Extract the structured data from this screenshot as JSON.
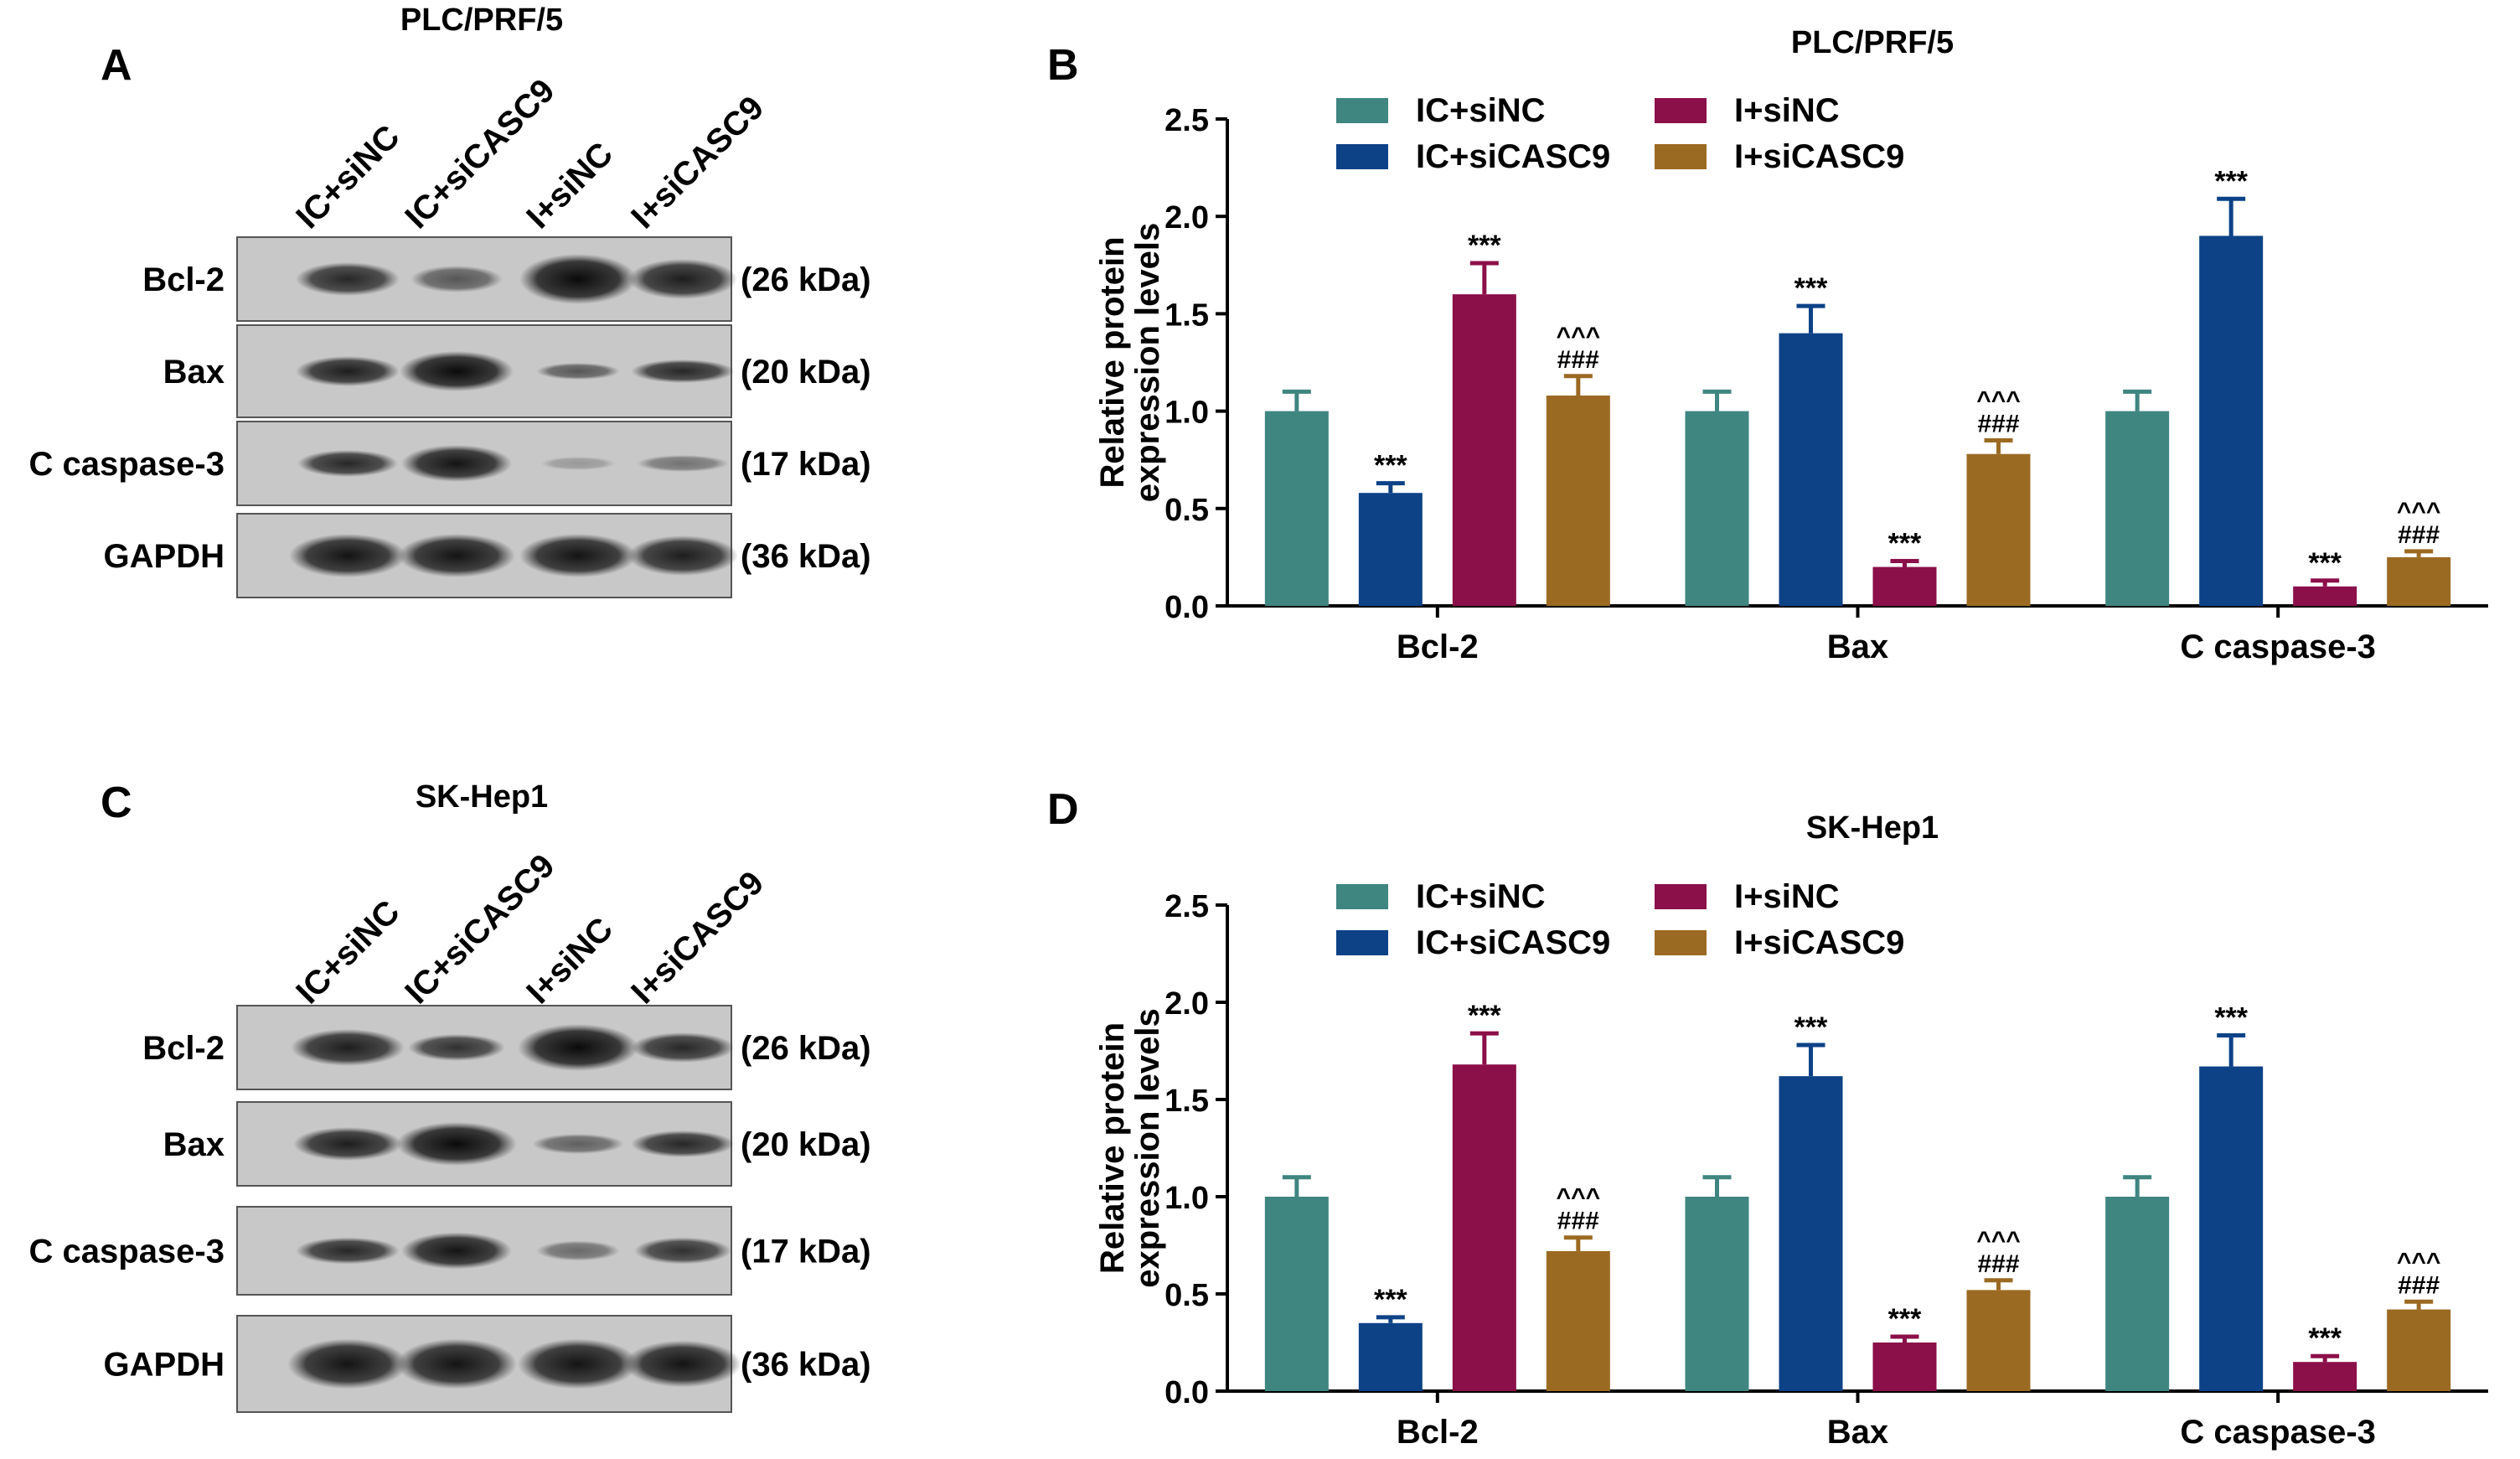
{
  "panels": {
    "A": {
      "letter": "A",
      "cell_line": "PLC/PRF/5"
    },
    "B": {
      "letter": "B",
      "cell_line": "PLC/PRF/5"
    },
    "C": {
      "letter": "C",
      "cell_line": "SK-Hep1"
    },
    "D": {
      "letter": "D",
      "cell_line": "SK-Hep1"
    }
  },
  "blot": {
    "lanes": [
      "IC+siNC",
      "IC+siCASC9",
      "I+siNC",
      "I+siCASC9"
    ],
    "rows": [
      {
        "protein": "Bcl-2",
        "size": "(26 kDa)"
      },
      {
        "protein": "Bax",
        "size": "(20 kDa)"
      },
      {
        "protein": "C caspase-3",
        "size": "(17 kDa)"
      },
      {
        "protein": "GAPDH",
        "size": "(36 kDa)"
      }
    ]
  },
  "colors": {
    "IC+siNC": "#3f8580",
    "IC+siCASC9": "#0d4287",
    "I+siNC": "#8b0f49",
    "I+siCASC9": "#9b6a22"
  },
  "chart_data": [
    {
      "type": "bar",
      "title": "PLC/PRF/5",
      "xlabel": "",
      "ylabel": "Relative protein expression levels",
      "ylim": [
        0,
        2.5
      ],
      "yticks": [
        "0.0",
        "0.5",
        "1.0",
        "1.5",
        "2.0",
        "2.5"
      ],
      "categories": [
        "Bcl-2",
        "Bax",
        "C caspase-3"
      ],
      "legend": "top-left, two columns",
      "series": [
        {
          "name": "IC+siNC",
          "values": [
            1.0,
            1.0,
            1.0
          ],
          "errors": [
            0.1,
            0.1,
            0.1
          ],
          "marks": [
            "",
            "",
            ""
          ]
        },
        {
          "name": "IC+siCASC9",
          "values": [
            0.58,
            1.4,
            1.9
          ],
          "errors": [
            0.05,
            0.14,
            0.19
          ],
          "marks": [
            "***",
            "***",
            "***"
          ]
        },
        {
          "name": "I+siNC",
          "values": [
            1.6,
            0.2,
            0.1
          ],
          "errors": [
            0.16,
            0.03,
            0.03
          ],
          "marks": [
            "***",
            "***",
            "***"
          ]
        },
        {
          "name": "I+siCASC9",
          "values": [
            1.08,
            0.78,
            0.25
          ],
          "errors": [
            0.1,
            0.07,
            0.03
          ],
          "marks": [
            "###\n^^^",
            "###\n^^^",
            "###\n^^^"
          ]
        }
      ]
    },
    {
      "type": "bar",
      "title": "SK-Hep1",
      "xlabel": "",
      "ylabel": "Relative protein expression levels",
      "ylim": [
        0,
        2.5
      ],
      "yticks": [
        "0.0",
        "0.5",
        "1.0",
        "1.5",
        "2.0",
        "2.5"
      ],
      "categories": [
        "Bcl-2",
        "Bax",
        "C caspase-3"
      ],
      "legend": "top-left, two columns",
      "series": [
        {
          "name": "IC+siNC",
          "values": [
            1.0,
            1.0,
            1.0
          ],
          "errors": [
            0.1,
            0.1,
            0.1
          ],
          "marks": [
            "",
            "",
            ""
          ]
        },
        {
          "name": "IC+siCASC9",
          "values": [
            0.35,
            1.62,
            1.67
          ],
          "errors": [
            0.03,
            0.16,
            0.16
          ],
          "marks": [
            "***",
            "***",
            "***"
          ]
        },
        {
          "name": "I+siNC",
          "values": [
            1.68,
            0.25,
            0.15
          ],
          "errors": [
            0.16,
            0.03,
            0.03
          ],
          "marks": [
            "***",
            "***",
            "***"
          ]
        },
        {
          "name": "I+siCASC9",
          "values": [
            0.72,
            0.52,
            0.42
          ],
          "errors": [
            0.07,
            0.05,
            0.04
          ],
          "marks": [
            "###\n^^^",
            "###\n^^^",
            "###\n^^^"
          ]
        }
      ]
    }
  ]
}
